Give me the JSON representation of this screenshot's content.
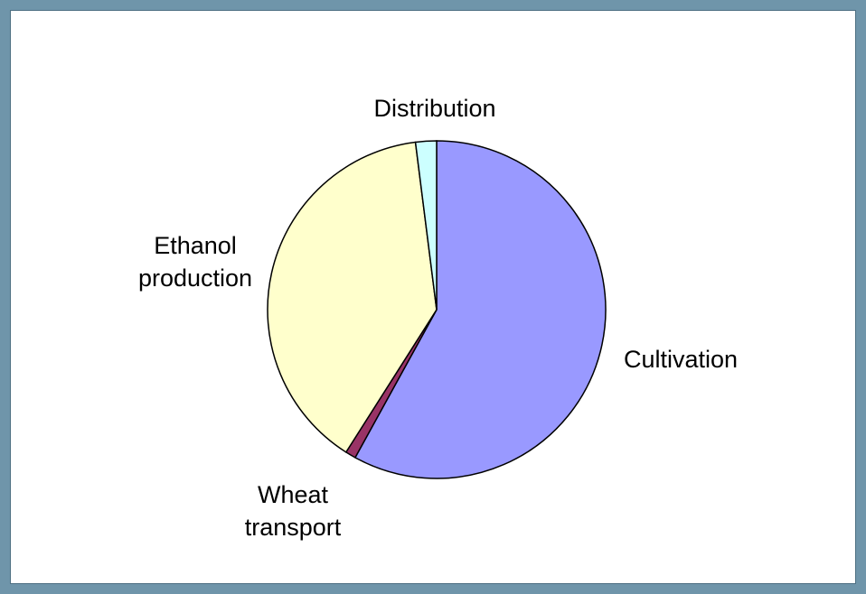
{
  "chart_data": {
    "type": "pie",
    "categories": [
      "Cultivation",
      "Wheat transport",
      "Ethanol production",
      "Distribution"
    ],
    "values": [
      58,
      1,
      39,
      2
    ],
    "colors": [
      "#9999ff",
      "#993366",
      "#ffffcc",
      "#ccffff"
    ]
  }
}
